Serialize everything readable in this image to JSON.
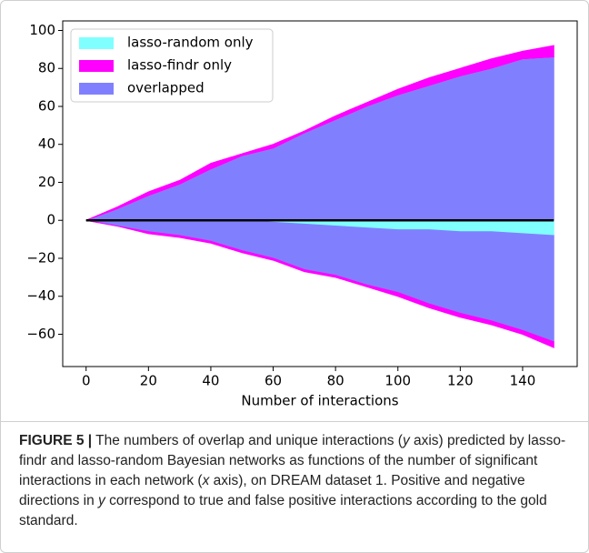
{
  "chart_data": {
    "type": "stacked-area",
    "x_label": "Number of interactions",
    "x": [
      0,
      10,
      20,
      30,
      40,
      50,
      60,
      70,
      80,
      90,
      100,
      110,
      120,
      130,
      140,
      150
    ],
    "series": [
      {
        "name": "lasso-random only",
        "color": "#80ffff",
        "values": [
          0,
          0,
          0,
          0,
          0,
          0,
          0,
          0,
          0,
          0,
          0,
          0,
          0,
          0,
          0,
          0
        ],
        "negative_values": [
          0,
          0,
          0,
          0,
          0,
          0,
          -1,
          -2,
          -3,
          -4,
          -5,
          -5,
          -6,
          -6,
          -7,
          -8
        ]
      },
      {
        "name": "lasso-findr only",
        "color": "#ff00ff",
        "values": [
          0,
          1,
          2,
          2,
          3,
          1,
          2,
          1,
          2,
          2,
          3,
          4,
          4,
          5,
          4,
          6
        ],
        "negative_values": [
          0,
          0,
          -1,
          -1,
          -1,
          -1,
          -1,
          -1,
          -1,
          -1,
          -2,
          -2,
          -2,
          -2,
          -2,
          -3
        ]
      },
      {
        "name": "overlapped",
        "color": "#8080ff",
        "values": [
          0,
          6,
          13,
          19,
          27,
          34,
          38,
          46,
          53,
          60,
          66,
          71,
          76,
          80,
          85,
          86
        ],
        "negative_values": [
          0,
          -3,
          -6,
          -8,
          -11,
          -16,
          -19,
          -24,
          -26,
          -30,
          -33,
          -39,
          -43,
          -47,
          -51,
          -56
        ]
      }
    ],
    "xlim": [
      -7.5,
      157.5
    ],
    "ylim": [
      -77,
      105
    ],
    "xticks": [
      0,
      20,
      40,
      60,
      80,
      100,
      120,
      140
    ],
    "yticks": [
      {
        "value": -60,
        "label": "−60"
      },
      {
        "value": -40,
        "label": "−40"
      },
      {
        "value": -20,
        "label": "−20"
      },
      0,
      20,
      40,
      60,
      80,
      100
    ],
    "legend": "upper left",
    "grid": false
  },
  "caption": {
    "label": "FIGURE 5 |",
    "parts": [
      "The numbers of overlap and unique interactions (",
      "y",
      " axis) predicted by lasso-findr and lasso-random Bayesian networks as functions of the number of significant interactions in each network (",
      "x",
      " axis), on DREAM dataset 1. Positive and negative directions in ",
      "y",
      " correspond to true and false positive interactions according to the gold standard."
    ]
  }
}
